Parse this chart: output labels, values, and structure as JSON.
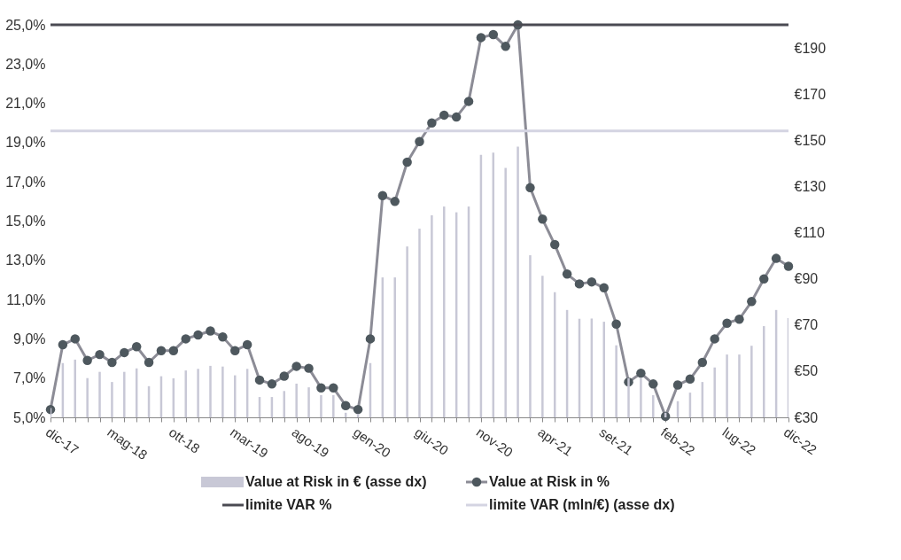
{
  "chart_data": {
    "type": "bar",
    "categories": [
      "dic-17",
      null,
      null,
      null,
      null,
      "mag-18",
      null,
      null,
      null,
      null,
      "ott-18",
      null,
      null,
      null,
      null,
      "mar-19",
      null,
      null,
      null,
      null,
      "ago-19",
      null,
      null,
      null,
      null,
      "gen-20",
      null,
      null,
      null,
      null,
      "giu-20",
      null,
      null,
      null,
      null,
      "nov-20",
      null,
      null,
      null,
      null,
      "apr-21",
      null,
      null,
      null,
      null,
      "set-21",
      null,
      null,
      null,
      null,
      "feb-22",
      null,
      null,
      null,
      null,
      "lug-22",
      null,
      null,
      null,
      null,
      "dic-22"
    ],
    "series": [
      {
        "name": "Value at Risk in € (asse dx)",
        "axis": "y2",
        "color": "#c8c8d6",
        "values": [
          34,
          53.5,
          55,
          47,
          49.7,
          45.3,
          49.7,
          51.2,
          43.5,
          47.8,
          46.9,
          50.3,
          51,
          52.3,
          52,
          48.2,
          51,
          38.8,
          38.8,
          41.4,
          44.6,
          43,
          39.6,
          39.6,
          32,
          31.5,
          53.5,
          90.6,
          90.6,
          104,
          111.7,
          117.5,
          121.3,
          118.8,
          121.3,
          143.7,
          144.6,
          138,
          147.2,
          100.2,
          91.3,
          84.2,
          76.5,
          72.7,
          72.8,
          71.4,
          61.2,
          47,
          47,
          39.6,
          32,
          37,
          40.7,
          45.3,
          51.6,
          57.2,
          57.2,
          61,
          69.5,
          76.5,
          73
        ]
      },
      {
        "name": "Value at Risk in %",
        "type": "line",
        "axis": "y",
        "color": "#8c8c96",
        "marker": "circle",
        "values": [
          5.4,
          8.7,
          9.0,
          7.9,
          8.2,
          7.8,
          8.3,
          8.6,
          7.8,
          8.4,
          8.4,
          9.0,
          9.2,
          9.4,
          9.1,
          8.4,
          8.7,
          6.9,
          6.7,
          7.1,
          7.6,
          7.5,
          6.5,
          6.5,
          5.6,
          5.4,
          9.0,
          16.3,
          16.0,
          18.0,
          19.05,
          20.0,
          20.4,
          20.3,
          21.1,
          24.35,
          24.5,
          23.9,
          25.0,
          16.7,
          15.1,
          13.8,
          12.3,
          11.8,
          11.9,
          11.6,
          9.75,
          6.8,
          7.25,
          6.7,
          5.05,
          6.65,
          6.95,
          7.8,
          9.0,
          9.8,
          10.0,
          10.9,
          12.05,
          13.1,
          12.7
        ]
      }
    ],
    "ylim": [
      5,
      25
    ],
    "yticks": [
      {
        "value": 5,
        "label": "5,0%"
      },
      {
        "value": 7,
        "label": "7,0%"
      },
      {
        "value": 9,
        "label": "9,0%"
      },
      {
        "value": 11,
        "label": "11,0%"
      },
      {
        "value": 13,
        "label": "13,0%"
      },
      {
        "value": 15,
        "label": "15,0%"
      },
      {
        "value": 17,
        "label": "17,0%"
      },
      {
        "value": 19,
        "label": "19,0%"
      },
      {
        "value": 21,
        "label": "21,0%"
      },
      {
        "value": 23,
        "label": "23,0%"
      },
      {
        "value": 25,
        "label": "25,0%"
      }
    ],
    "y2lim": [
      30,
      200
    ],
    "y2ticks": [
      {
        "value": 30,
        "label": "€30"
      },
      {
        "value": 50,
        "label": "€50"
      },
      {
        "value": 70,
        "label": "€70"
      },
      {
        "value": 90,
        "label": "€90"
      },
      {
        "value": 110,
        "label": "€110"
      },
      {
        "value": 130,
        "label": "€130"
      },
      {
        "value": 150,
        "label": "€150"
      },
      {
        "value": 170,
        "label": "€170"
      },
      {
        "value": 190,
        "label": "€190"
      }
    ],
    "ref_lines": [
      {
        "axis": "y",
        "value": 25,
        "label": "limite VAR %",
        "color": "#4a4a52"
      },
      {
        "axis": "y2",
        "value": 154,
        "label": "limite VAR (mln/€) (asse dx)",
        "color": "#d4d4e2"
      }
    ],
    "grid": false,
    "legend": "bottom"
  }
}
